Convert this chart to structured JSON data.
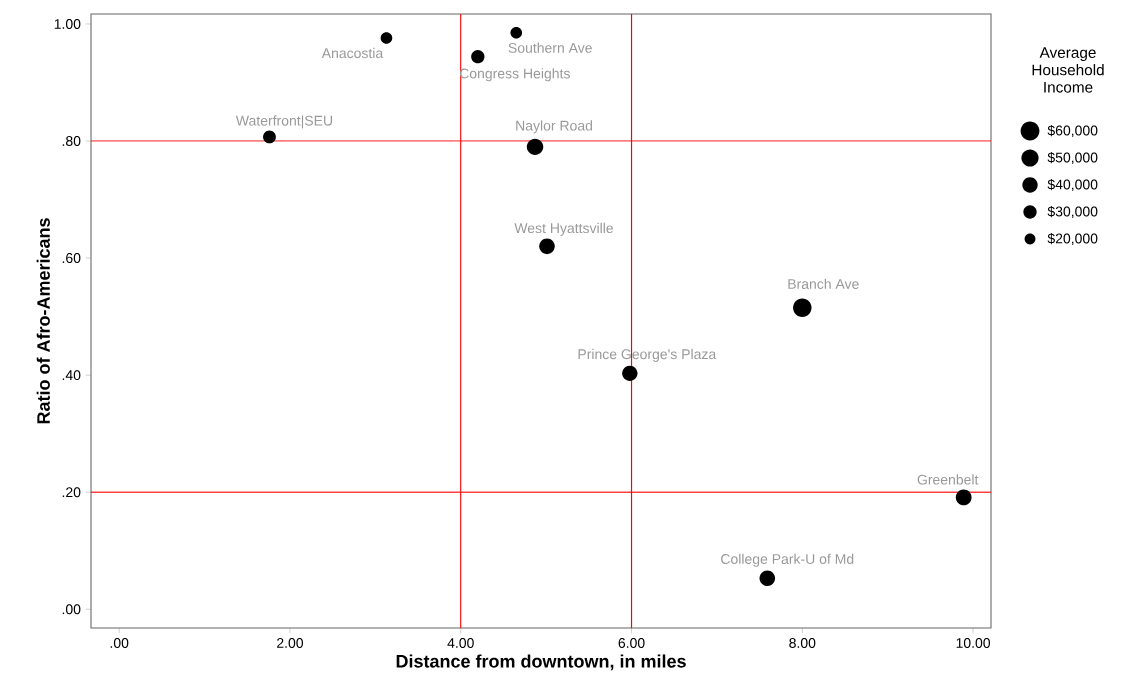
{
  "chart_data": {
    "type": "bubble",
    "xlabel": "Distance from downtown, in miles",
    "ylabel": "Ratio of Afro-Americans",
    "legend_title": "Average Household Income",
    "marker": "circle",
    "xlim": [
      -0.33,
      10.21
    ],
    "ylim": [
      -0.032,
      1.017
    ],
    "xticks": [
      {
        "value": 0,
        "label": ".00"
      },
      {
        "value": 2,
        "label": "2.00"
      },
      {
        "value": 4,
        "label": "4.00"
      },
      {
        "value": 6,
        "label": "6.00"
      },
      {
        "value": 8,
        "label": "8.00"
      },
      {
        "value": 10,
        "label": "10.00"
      }
    ],
    "yticks": [
      {
        "value": 0,
        "label": ".00"
      },
      {
        "value": 0.2,
        "label": ".20"
      },
      {
        "value": 0.4,
        "label": ".40"
      },
      {
        "value": 0.6,
        "label": ".60"
      },
      {
        "value": 0.8,
        "label": ".80"
      },
      {
        "value": 1,
        "label": "1.00"
      }
    ],
    "series": [
      {
        "color": "#000000",
        "x": [
          3.13,
          4.65,
          4.2,
          1.76,
          4.87,
          5.01,
          8.0,
          5.98,
          9.89,
          7.59
        ],
        "values": [
          0.976,
          0.985,
          0.944,
          0.807,
          0.79,
          0.62,
          0.515,
          0.403,
          0.191,
          0.053
        ],
        "sizes": [
          23000,
          23000,
          30000,
          28000,
          46000,
          41000,
          58000,
          40000,
          42000,
          41000
        ]
      }
    ],
    "size_legend": [
      {
        "value": 60000,
        "label": "$60,000"
      },
      {
        "value": 50000,
        "label": "$50,000"
      },
      {
        "value": 40000,
        "label": "$40,000"
      },
      {
        "value": 30000,
        "label": "$30,000"
      },
      {
        "value": 20000,
        "label": "$20,000"
      }
    ],
    "ref_lines": [
      {
        "axis": "x",
        "value": 4,
        "color": "#ff0000"
      },
      {
        "axis": "x",
        "value": 6,
        "color": "#ff0000"
      },
      {
        "axis": "y",
        "value": 0.8,
        "color": "#ff0000"
      },
      {
        "axis": "y",
        "value": 0.2,
        "color": "#ff0000"
      }
    ],
    "annotations": [
      {
        "text": "Anacostia",
        "x": 3.13,
        "y": 0.976
      },
      {
        "text": "Southern Ave",
        "x": 4.65,
        "y": 0.985
      },
      {
        "text": "Congress Heights",
        "x": 4.2,
        "y": 0.944
      },
      {
        "text": "Waterfront|SEU",
        "x": 1.76,
        "y": 0.807
      },
      {
        "text": "Naylor Road",
        "x": 4.87,
        "y": 0.79
      },
      {
        "text": "West Hyattsville",
        "x": 5.01,
        "y": 0.62
      },
      {
        "text": "Branch Ave",
        "x": 8.0,
        "y": 0.515
      },
      {
        "text": "Prince George's Plaza",
        "x": 5.98,
        "y": 0.403
      },
      {
        "text": "Greenbelt",
        "x": 9.89,
        "y": 0.191
      },
      {
        "text": "College Park-U of Md",
        "x": 7.59,
        "y": 0.053
      }
    ]
  }
}
